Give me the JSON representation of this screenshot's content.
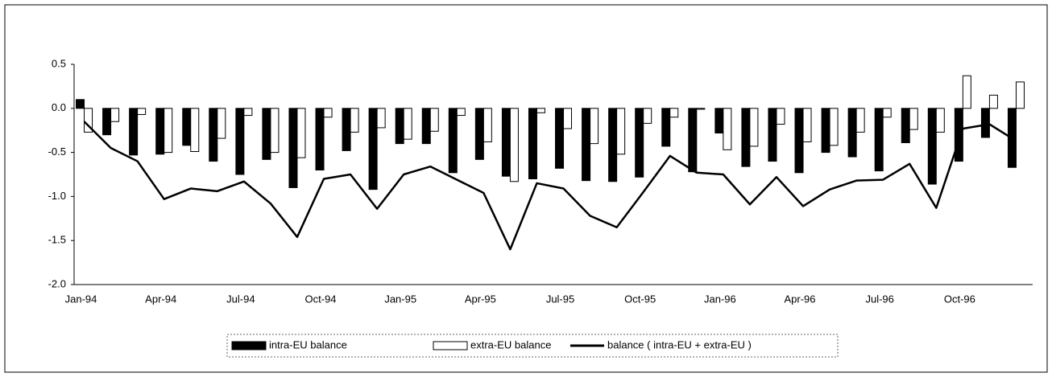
{
  "chart_data": {
    "type": "bar_line",
    "categories": [
      "Jan-94",
      null,
      null,
      "Apr-94",
      null,
      null,
      "Jul-94",
      null,
      null,
      "Oct-94",
      null,
      null,
      "Jan-95",
      null,
      null,
      "Apr-95",
      null,
      null,
      "Jul-95",
      null,
      null,
      "Oct-95",
      null,
      null,
      "Jan-96",
      null,
      null,
      "Apr-96",
      null,
      null,
      "Jul-96",
      null,
      null,
      "Oct-96",
      null,
      null
    ],
    "series": [
      {
        "name": "intra-EU balance",
        "type": "bar",
        "color": "#000000",
        "values": [
          0.1,
          -0.3,
          -0.53,
          -0.52,
          -0.42,
          -0.6,
          -0.75,
          -0.58,
          -0.9,
          -0.7,
          -0.48,
          -0.92,
          -0.4,
          -0.4,
          -0.73,
          -0.58,
          -0.77,
          -0.8,
          -0.68,
          -0.82,
          -0.83,
          -0.78,
          -0.43,
          -0.72,
          -0.28,
          -0.66,
          -0.6,
          -0.73,
          -0.5,
          -0.55,
          -0.71,
          -0.39,
          -0.86,
          -0.6,
          -0.33,
          -0.67
        ]
      },
      {
        "name": "extra-EU balance",
        "type": "bar",
        "color": "#ffffff",
        "values": [
          -0.27,
          -0.15,
          -0.07,
          -0.5,
          -0.49,
          -0.34,
          -0.08,
          -0.5,
          -0.56,
          -0.1,
          -0.27,
          -0.22,
          -0.35,
          -0.26,
          -0.08,
          -0.38,
          -0.83,
          -0.05,
          -0.23,
          -0.4,
          -0.52,
          -0.17,
          -0.1,
          -0.01,
          -0.47,
          -0.43,
          -0.18,
          -0.38,
          -0.42,
          -0.27,
          -0.1,
          -0.24,
          -0.27,
          0.37,
          0.15,
          0.3
        ]
      },
      {
        "name": "balance ( intra-EU + extra-EU )",
        "type": "line",
        "color": "#000000",
        "values": [
          -0.15,
          -0.45,
          -0.6,
          -1.03,
          -0.91,
          -0.94,
          -0.83,
          -1.08,
          -1.46,
          -0.8,
          -0.75,
          -1.14,
          -0.75,
          -0.66,
          -0.81,
          -0.96,
          -1.6,
          -0.85,
          -0.91,
          -1.22,
          -1.35,
          -0.95,
          -0.54,
          -0.73,
          -0.75,
          -1.09,
          -0.78,
          -1.11,
          -0.92,
          -0.82,
          -0.81,
          -0.63,
          -1.13,
          -0.23,
          -0.18,
          -0.37
        ]
      }
    ],
    "ylim": [
      -2.0,
      0.5
    ],
    "yticks": [
      {
        "value": 0.5,
        "label": "0.5"
      },
      {
        "value": 0,
        "label": "0.0"
      },
      {
        "value": -0.5,
        "label": "-0.5"
      },
      {
        "value": -1,
        "label": "-1.0"
      },
      {
        "value": -1.5,
        "label": "-1.5"
      },
      {
        "value": -2,
        "label": "-2.0"
      }
    ],
    "legend": "bottom"
  }
}
